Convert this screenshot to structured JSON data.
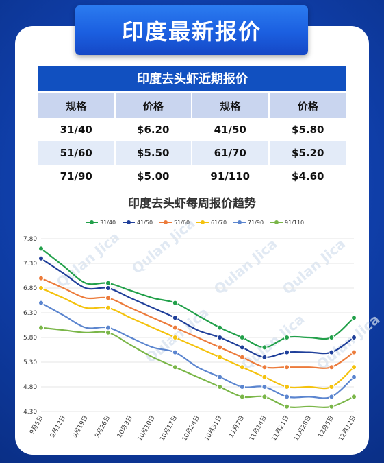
{
  "banner": {
    "title": "印度最新报价"
  },
  "table": {
    "title": "印度去头虾近期报价",
    "headers": [
      "规格",
      "价格",
      "规格",
      "价格"
    ],
    "rows": [
      [
        "31/40",
        "$6.20",
        "41/50",
        "$5.80"
      ],
      [
        "51/60",
        "$5.50",
        "61/70",
        "$5.20"
      ],
      [
        "71/90",
        "$5.00",
        "91/110",
        "$4.60"
      ]
    ]
  },
  "chart_data": {
    "type": "line",
    "title": "印度去头虾每周报价趋势",
    "x": [
      "9月5日",
      "9月12日",
      "9月19日",
      "9月26日",
      "10月3日",
      "10月10日",
      "10月17日",
      "10月24日",
      "10月31日",
      "11月7日",
      "11月14日",
      "11月21日",
      "11月28日",
      "12月5日",
      "12月12日"
    ],
    "ylim": [
      4.3,
      7.8
    ],
    "yticks": [
      "7.80",
      "7.30",
      "6.80",
      "6.30",
      "5.80",
      "5.30",
      "4.80",
      "4.30"
    ],
    "grid": true,
    "legend_position": "top",
    "watermark_text": "Qulan Jica",
    "series": [
      {
        "name": "31/40",
        "color": "#22a04a",
        "values": [
          7.6,
          7.25,
          6.9,
          6.9,
          6.75,
          6.6,
          6.5,
          6.25,
          6.0,
          5.8,
          5.6,
          5.8,
          5.8,
          5.8,
          6.2
        ]
      },
      {
        "name": "41/50",
        "color": "#1f3f9a",
        "values": [
          7.4,
          7.1,
          6.8,
          6.8,
          6.6,
          6.4,
          6.2,
          5.95,
          5.8,
          5.6,
          5.4,
          5.5,
          5.5,
          5.5,
          5.8
        ]
      },
      {
        "name": "51/60",
        "color": "#ec7b3b",
        "values": [
          7.0,
          6.8,
          6.6,
          6.6,
          6.4,
          6.2,
          6.0,
          5.8,
          5.6,
          5.4,
          5.2,
          5.2,
          5.2,
          5.2,
          5.5
        ]
      },
      {
        "name": "61/70",
        "color": "#f4c20d",
        "values": [
          6.8,
          6.6,
          6.4,
          6.4,
          6.2,
          6.0,
          5.8,
          5.6,
          5.4,
          5.2,
          5.0,
          4.8,
          4.8,
          4.8,
          5.2
        ]
      },
      {
        "name": "71/90",
        "color": "#5b85cf",
        "values": [
          6.5,
          6.25,
          6.0,
          6.0,
          5.8,
          5.6,
          5.5,
          5.2,
          5.0,
          4.8,
          4.8,
          4.6,
          4.6,
          4.6,
          5.0
        ]
      },
      {
        "name": "91/110",
        "color": "#7ab648",
        "values": [
          6.0,
          5.95,
          5.9,
          5.9,
          5.65,
          5.4,
          5.2,
          5.0,
          4.8,
          4.6,
          4.6,
          4.4,
          4.4,
          4.4,
          4.6
        ]
      }
    ]
  }
}
